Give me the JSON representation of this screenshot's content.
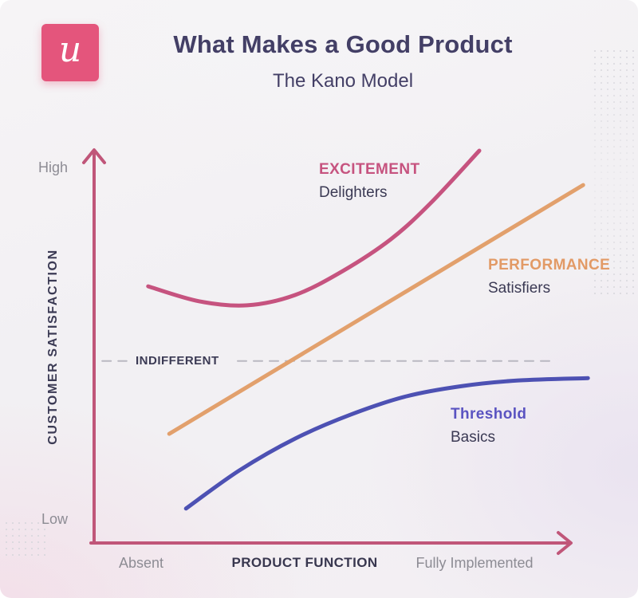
{
  "header": {
    "logo_letter": "u",
    "title": "What Makes a Good Product",
    "subtitle": "The Kano Model"
  },
  "axes": {
    "y_top_label": "High",
    "y_bottom_label": "Low",
    "y_axis_title": "CUSTOMER SATISFACTION",
    "x_left_label": "Absent",
    "x_axis_title": "PRODUCT FUNCTION",
    "x_right_label": "Fully Implemented"
  },
  "curve_labels": {
    "excitement": {
      "title": "EXCITEMENT",
      "subtitle": "Delighters"
    },
    "performance": {
      "title": "PERFORMANCE",
      "subtitle": "Satisfiers"
    },
    "threshold": {
      "title": "Threshold",
      "subtitle": "Basics"
    },
    "indifferent": "INDIFFERENT"
  },
  "colors": {
    "logo_pink": "#e4557c",
    "axis": "#c05679",
    "excitement": "#c6537f",
    "performance": "#e2a06c",
    "threshold": "#4d51b3",
    "indifferent_line": "#b9b8c1",
    "heading_text": "#433f66",
    "body_text": "#3b3a54",
    "muted_text": "#8d8c94"
  },
  "chart_data": {
    "type": "line",
    "title": "What Makes a Good Product",
    "subtitle": "The Kano Model",
    "xlabel": "PRODUCT FUNCTION",
    "ylabel": "CUSTOMER SATISFACTION",
    "x_range_labels": [
      "Absent",
      "Fully Implemented"
    ],
    "y_range_labels": [
      "Low",
      "High"
    ],
    "axes_qualitative": true,
    "grid": false,
    "legend": "inline-labels",
    "series": [
      {
        "id": "indifferent",
        "name": "Indifferent",
        "color": "#b9b8c1",
        "style": "dashed",
        "segments": [
          [
            [
              0.017,
              0.46
            ],
            [
              0.068,
              0.46
            ]
          ],
          [
            [
              0.3,
              0.46
            ],
            [
              0.962,
              0.46
            ]
          ]
        ]
      },
      {
        "id": "threshold",
        "name": "Threshold (Basics)",
        "color": "#4d51b3",
        "style": "solid",
        "points": [
          [
            0.192,
            0.087
          ],
          [
            0.303,
            0.183
          ],
          [
            0.42,
            0.264
          ],
          [
            0.537,
            0.325
          ],
          [
            0.653,
            0.371
          ],
          [
            0.77,
            0.397
          ],
          [
            0.887,
            0.411
          ],
          [
            1.032,
            0.417
          ]
        ]
      },
      {
        "id": "performance",
        "name": "Performance (Satisfiers)",
        "color": "#e2a06c",
        "style": "solid",
        "points": [
          [
            0.157,
            0.276
          ],
          [
            1.022,
            0.905
          ]
        ]
      },
      {
        "id": "excitement",
        "name": "Excitement (Delighters)",
        "color": "#c6537f",
        "style": "solid",
        "points": [
          [
            0.113,
            0.649
          ],
          [
            0.22,
            0.611
          ],
          [
            0.32,
            0.601
          ],
          [
            0.42,
            0.627
          ],
          [
            0.52,
            0.688
          ],
          [
            0.62,
            0.768
          ],
          [
            0.703,
            0.859
          ],
          [
            0.805,
            0.992
          ]
        ]
      }
    ]
  }
}
